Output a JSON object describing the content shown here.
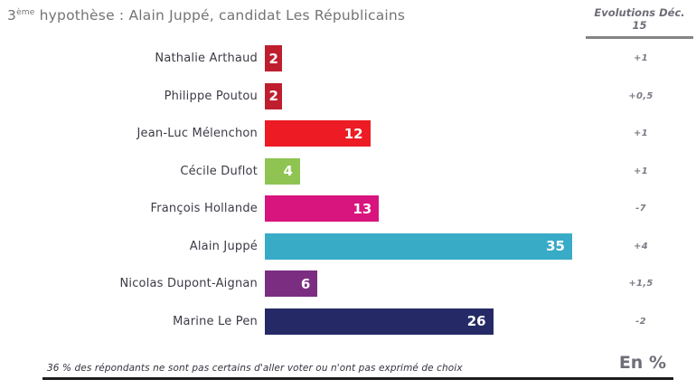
{
  "title": {
    "base": "3",
    "sup": "ème",
    "rest": " hypothèse : Alain Juppé, candidat Les Républicains"
  },
  "evolutions_header": "Evolutions Déc. 15",
  "footer": {
    "note": "36 % des répondants ne sont pas certains d'aller voter ou n'ont pas exprimé de choix",
    "unit_label": "En %"
  },
  "chart_data": {
    "type": "bar",
    "orientation": "horizontal",
    "title": "3ème hypothèse : Alain Juppé, candidat Les Républicains",
    "unit": "%",
    "xlim": [
      0,
      36
    ],
    "grid": false,
    "categories": [
      "Nathalie Arthaud",
      "Philippe Poutou",
      "Jean-Luc Mélenchon",
      "Cécile Duflot",
      "François Hollande",
      "Alain Juppé",
      "Nicolas Dupont-Aignan",
      "Marine Le Pen"
    ],
    "values": [
      2,
      2,
      12,
      4,
      13,
      35,
      6,
      26
    ],
    "evolutions": [
      "+1",
      "+0,5",
      "+1",
      "+1",
      "-7",
      "+4",
      "+1,5",
      "-2"
    ],
    "bar_colors": [
      "#bf1e2e",
      "#bf1e2e",
      "#ec1b24",
      "#8fc453",
      "#d8157e",
      "#38abc7",
      "#7b2d82",
      "#252a66"
    ],
    "value_label_color": "#ffffff"
  }
}
